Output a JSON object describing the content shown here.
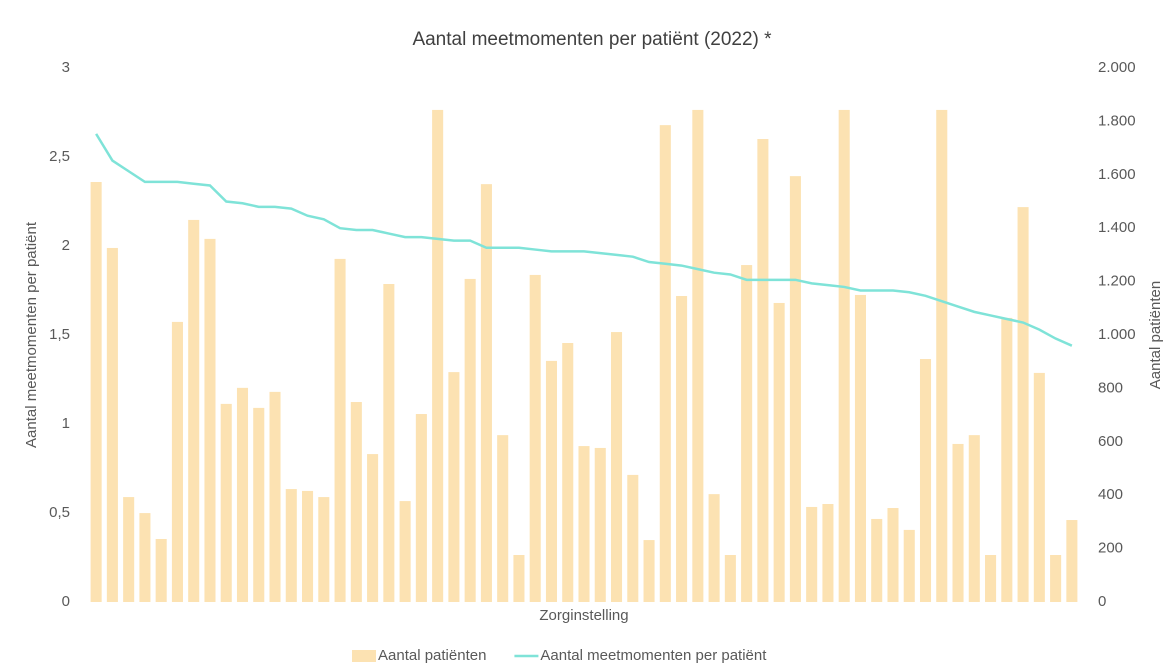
{
  "chart_data": {
    "type": "bar_line",
    "title": "Aantal meetmomenten per patiënt (2022) *",
    "xlabel": "Zorginstelling",
    "ylabel": "Aantal meetmomenten per patiënt",
    "y2label": "Aantal patiënten",
    "categories": [
      null,
      null,
      null,
      null,
      null,
      null,
      null,
      null,
      null,
      null,
      null,
      null,
      null,
      null,
      null,
      null,
      null,
      null,
      null,
      null,
      null,
      null,
      null,
      null,
      null,
      null,
      null,
      null,
      null,
      null,
      null,
      null,
      null,
      null,
      null,
      null,
      null,
      null,
      null,
      null,
      null,
      null,
      null,
      null,
      null,
      null,
      null,
      null,
      null,
      null,
      null,
      null,
      null,
      null,
      null,
      null,
      null,
      null,
      null,
      null,
      null
    ],
    "series": [
      {
        "name": "Aantal patiënten",
        "type": "bar",
        "axis": "y2",
        "color": "#fce2b2",
        "values": [
          1573,
          1326,
          393,
          333,
          236,
          1049,
          1431,
          1360,
          742,
          802,
          727,
          787,
          423,
          416,
          393,
          1285,
          749,
          554,
          1191,
          378,
          704,
          1843,
          861,
          1210,
          1565,
          625,
          176,
          1225,
          903,
          970,
          584,
          577,
          1011,
          476,
          232,
          1786,
          1146,
          1843,
          404,
          176,
          1262,
          1734,
          1120,
          1595,
          356,
          367,
          1843,
          1150,
          311,
          352,
          270,
          910,
          1843,
          592,
          625,
          176,
          1064,
          1479,
          858,
          176,
          307
        ]
      },
      {
        "name": "Aantal meetmomenten per patiënt",
        "type": "line",
        "axis": "y",
        "color": "#7fe3d8",
        "values": [
          2.63,
          2.48,
          2.42,
          2.36,
          2.36,
          2.36,
          2.35,
          2.34,
          2.25,
          2.24,
          2.22,
          2.22,
          2.21,
          2.17,
          2.15,
          2.1,
          2.09,
          2.09,
          2.07,
          2.05,
          2.05,
          2.04,
          2.03,
          2.03,
          1.99,
          1.99,
          1.99,
          1.98,
          1.97,
          1.97,
          1.97,
          1.96,
          1.95,
          1.94,
          1.91,
          1.9,
          1.89,
          1.87,
          1.85,
          1.84,
          1.81,
          1.81,
          1.81,
          1.81,
          1.79,
          1.78,
          1.77,
          1.75,
          1.75,
          1.75,
          1.74,
          1.72,
          1.69,
          1.66,
          1.63,
          1.61,
          1.59,
          1.57,
          1.53,
          1.48,
          1.44
        ]
      }
    ],
    "ylim": [
      0,
      3
    ],
    "yticks": [
      0,
      {
        "value": 0.5,
        "label": "0,5"
      },
      1,
      {
        "value": 1.5,
        "label": "1,5"
      },
      2,
      {
        "value": 2.5,
        "label": "2,5"
      },
      3
    ],
    "y2lim": [
      0,
      2000
    ],
    "y2ticks": [
      0,
      200,
      400,
      600,
      800,
      {
        "value": 1000,
        "label": "1.000"
      },
      {
        "value": 1200,
        "label": "1.200"
      },
      {
        "value": 1400,
        "label": "1.400"
      },
      {
        "value": 1600,
        "label": "1.600"
      },
      {
        "value": 1800,
        "label": "1.800"
      },
      {
        "value": 2000,
        "label": "2.000"
      }
    ],
    "legend": "bottom",
    "grid": false
  }
}
